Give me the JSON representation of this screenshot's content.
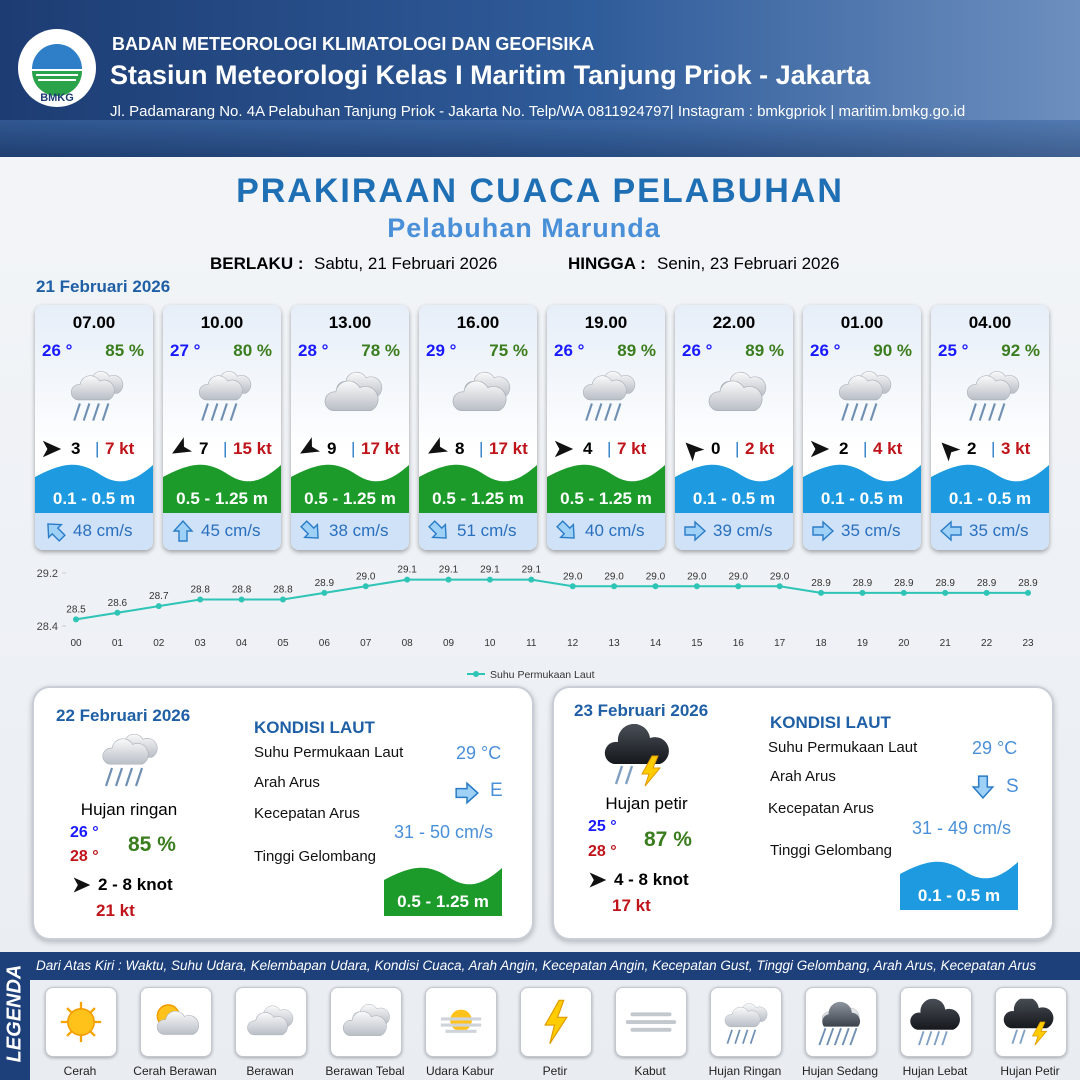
{
  "header": {
    "organization": "BADAN METEOROLOGI KLIMATOLOGI DAN GEOFISIKA",
    "station": "Stasiun Meteorologi Kelas I Maritim Tanjung Priok - Jakarta",
    "address": "Jl. Padamarang No. 4A Pelabuhan Tanjung Priok - Jakarta No. Telp/WA 0811924797| Instagram : bmkgpriok | maritim.bmkg.go.id",
    "logo_text": "BMKG"
  },
  "title": "PRAKIRAAN CUACA PELABUHAN",
  "subtitle": "Pelabuhan Marunda",
  "validity": {
    "from_label": "BERLAKU :",
    "from": "Sabtu, 21 Februari 2026",
    "to_label": "HINGGA :",
    "to": "Senin, 23 Februari 2026"
  },
  "day1_date": "21 Februari 2026",
  "forecasts": [
    {
      "time": "07.00",
      "temp": "26 °",
      "humidity": "85 %",
      "wind": "3",
      "gust": "7 kt",
      "wave": "0.1 - 0.5 m",
      "current": "48 cm/s"
    },
    {
      "time": "10.00",
      "temp": "27 °",
      "humidity": "80 %",
      "wind": "7",
      "gust": "15 kt",
      "wave": "0.5 - 1.25 m",
      "current": "45 cm/s"
    },
    {
      "time": "13.00",
      "temp": "28 °",
      "humidity": "78 %",
      "wind": "9",
      "gust": "17 kt",
      "wave": "0.5 - 1.25 m",
      "current": "38 cm/s"
    },
    {
      "time": "16.00",
      "temp": "29 °",
      "humidity": "75 %",
      "wind": "8",
      "gust": "17 kt",
      "wave": "0.5 - 1.25 m",
      "current": "51 cm/s"
    },
    {
      "time": "19.00",
      "temp": "26 °",
      "humidity": "89 %",
      "wind": "4",
      "gust": "7 kt",
      "wave": "0.5 - 1.25 m",
      "current": "40 cm/s"
    },
    {
      "time": "22.00",
      "temp": "26 °",
      "humidity": "89 %",
      "wind": "0",
      "gust": "2 kt",
      "wave": "0.1 - 0.5 m",
      "current": "39 cm/s"
    },
    {
      "time": "01.00",
      "temp": "26 °",
      "humidity": "90 %",
      "wind": "2",
      "gust": "4 kt",
      "wave": "0.1 - 0.5 m",
      "current": "35 cm/s"
    },
    {
      "time": "04.00",
      "temp": "25 °",
      "humidity": "92 %",
      "wind": "2",
      "gust": "3 kt",
      "wave": "0.1 - 0.5 m",
      "current": "35 cm/s"
    }
  ],
  "chart_data": {
    "type": "line",
    "categories": [
      "00",
      "01",
      "02",
      "03",
      "04",
      "05",
      "06",
      "07",
      "08",
      "09",
      "10",
      "11",
      "12",
      "13",
      "14",
      "15",
      "16",
      "17",
      "18",
      "19",
      "20",
      "21",
      "22",
      "23"
    ],
    "series": [
      {
        "name": "Suhu Permukaan Laut",
        "color": "#2ec4b6",
        "values": [
          28.5,
          28.6,
          28.7,
          28.8,
          28.8,
          28.8,
          28.9,
          29.0,
          29.1,
          29.1,
          29.1,
          29.1,
          29.0,
          29.0,
          29.0,
          29.0,
          29.0,
          29.0,
          28.9,
          28.9,
          28.9,
          28.9,
          28.9,
          28.9
        ],
        "value_labels": [
          "28.5",
          "28.6",
          "28.7",
          "28.8",
          "28.8",
          "28.8",
          "28.9",
          "29.0",
          "29.1",
          "29.1",
          "29.1",
          "29.1",
          "29.0",
          "29.0",
          "29.0",
          "29.0",
          "29.0",
          "29.0",
          "28.9",
          "28.9",
          "28.9",
          "28.9",
          "28.9",
          "28.9"
        ]
      }
    ],
    "ylim": [
      28.4,
      29.2
    ],
    "yticks": [
      28.4,
      29.2
    ],
    "legend": "bottom"
  },
  "day2": {
    "date": "22 Februari 2026",
    "condition": "Hujan ringan",
    "temp_min": "26 °",
    "temp_max": "28 °",
    "humidity": "85 %",
    "wind": "2 - 8 knot",
    "gust": "21 kt",
    "sea_title": "KONDISI LAUT",
    "sst_label": "Suhu Permukaan Laut",
    "sst": "29 °C",
    "dir_label": "Arah Arus",
    "dir": "E",
    "speed_label": "Kecepatan Arus",
    "speed": "31 - 50 cm/s",
    "wave_label": "Tinggi Gelombang",
    "wave": "0.5 - 1.25 m"
  },
  "day3": {
    "date": "23 Februari 2026",
    "condition": "Hujan petir",
    "temp_min": "25 °",
    "temp_max": "28 °",
    "humidity": "87 %",
    "wind": "4 - 8 knot",
    "gust": "17 kt",
    "sea_title": "KONDISI LAUT",
    "sst_label": "Suhu Permukaan Laut",
    "sst": "29 °C",
    "dir_label": "Arah Arus",
    "dir": "S",
    "speed_label": "Kecepatan Arus",
    "speed": "31 - 49 cm/s",
    "wave_label": "Tinggi Gelombang",
    "wave": "0.1 - 0.5 m"
  },
  "legend": {
    "title": "LEGENDA",
    "description": "Dari Atas Kiri : Waktu, Suhu Udara, Kelembapan Udara, Kondisi Cuaca, Arah Angin, Kecepatan Angin, Kecepatan Gust, Tinggi Gelombang, Arah Arus, Kecepatan Arus",
    "items": [
      "Cerah",
      "Cerah Berawan",
      "Berawan",
      "Berawan Tebal",
      "Udara Kabur",
      "Petir",
      "Kabut",
      "Hujan Ringan",
      "Hujan Sedang",
      "Hujan Lebat",
      "Hujan Petir"
    ]
  }
}
